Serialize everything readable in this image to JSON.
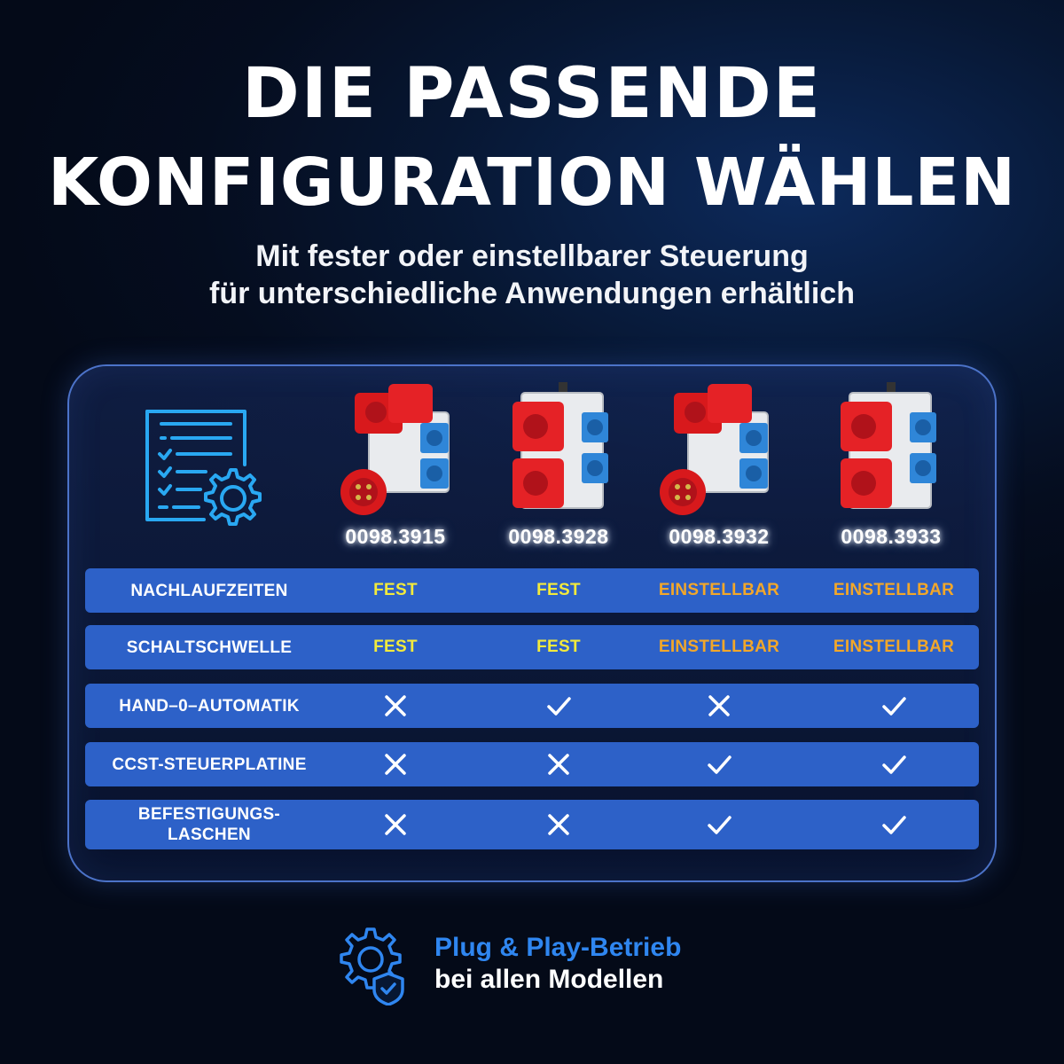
{
  "title": {
    "line1": "DIE PASSENDE",
    "line2": "KONFIGURATION WÄHLEN"
  },
  "subtitle": {
    "line1": "Mit fester oder einstellbarer Steuerung",
    "line2": "für unterschiedliche Anwendungen erhältlich"
  },
  "colors": {
    "row_background": "#2d61c8",
    "fest": "#f2ea3c",
    "einstellbar": "#f2a72a",
    "footer_highlight": "#2f86f0",
    "panel_border": "#4c73c9"
  },
  "icons": {
    "header": "checklist-gear-icon",
    "footer": "gears-shield-icon",
    "yes": "check-icon",
    "no": "cross-icon"
  },
  "products": [
    {
      "model": "0098.3915"
    },
    {
      "model": "0098.3928"
    },
    {
      "model": "0098.3932"
    },
    {
      "model": "0098.3933"
    }
  ],
  "rows": [
    {
      "label": "NACHLAUFZEITEN",
      "values": [
        "FEST",
        "FEST",
        "EINSTELLBAR",
        "EINSTELLBAR"
      ]
    },
    {
      "label": "SCHALTSCHWELLE",
      "values": [
        "FEST",
        "FEST",
        "EINSTELLBAR",
        "EINSTELLBAR"
      ]
    },
    {
      "label": "HAND–0–AUTOMATIK",
      "values": [
        "no",
        "yes",
        "no",
        "yes"
      ]
    },
    {
      "label": "CCST-STEUERPLATINE",
      "values": [
        "no",
        "no",
        "yes",
        "yes"
      ]
    },
    {
      "label": "BEFESTIGUNGS-\nLASCHEN",
      "values": [
        "no",
        "no",
        "yes",
        "yes"
      ]
    }
  ],
  "footer": {
    "line1": "Plug & Play-Betrieb",
    "line2": "bei allen Modellen"
  }
}
